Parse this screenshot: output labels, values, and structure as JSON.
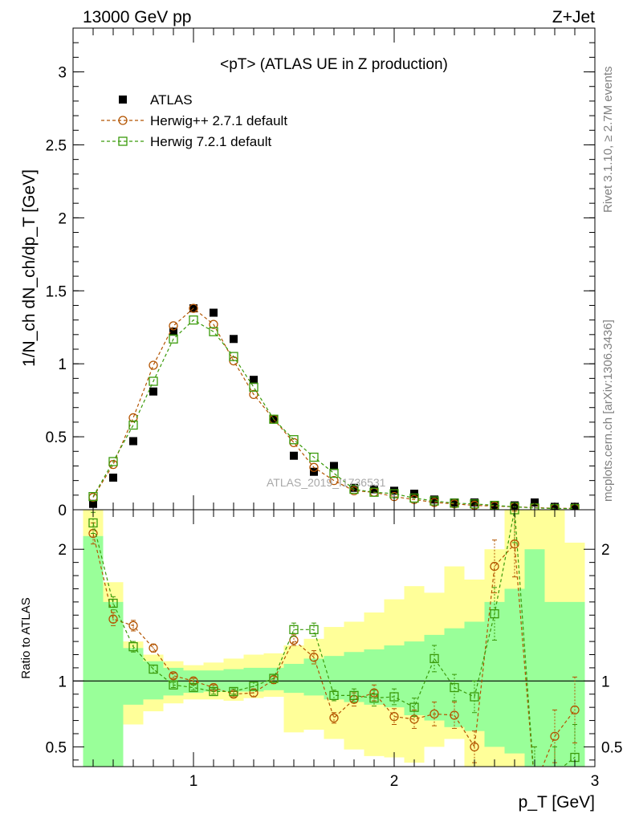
{
  "header": {
    "energy": "13000 GeV pp",
    "process": "Z+Jet"
  },
  "side_labels": {
    "rivet": "Rivet 3.1.10, ≥ 2.7M events",
    "mcplots": "mcplots.cern.ch [arXiv:1306.3436]"
  },
  "watermark": "ATLAS_2019_I1736531",
  "chart_data": [
    {
      "type": "scatter",
      "title": "<pT> (ATLAS UE in Z production)",
      "xlabel": "p_T [GeV]",
      "ylabel": "1/N_ch dN_ch/dp_T [GeV]",
      "xlim": [
        0.4,
        3.0
      ],
      "ylim": [
        0,
        3.3
      ],
      "x_ticks": [
        1,
        2,
        3
      ],
      "y_ticks": [
        0,
        0.5,
        1,
        1.5,
        2,
        2.5,
        3
      ],
      "y_tick_labels": [
        "0",
        "0.5",
        "1",
        "1.5",
        "2",
        "2.5",
        "3"
      ],
      "legend_position": "top-left",
      "x": [
        0.5,
        0.6,
        0.7,
        0.8,
        0.9,
        1.0,
        1.1,
        1.2,
        1.3,
        1.4,
        1.5,
        1.6,
        1.7,
        1.8,
        1.9,
        2.0,
        2.1,
        2.2,
        2.3,
        2.4,
        2.5,
        2.6,
        2.7,
        2.8,
        2.9
      ],
      "series": [
        {
          "name": "ATLAS",
          "marker": "filled-square",
          "color": "#000000",
          "values": [
            0.04,
            0.22,
            0.47,
            0.81,
            1.22,
            1.38,
            1.35,
            1.17,
            0.89,
            0.62,
            0.37,
            0.26,
            0.3,
            0.15,
            0.14,
            0.13,
            0.11,
            0.07,
            0.05,
            0.05,
            0.03,
            0.03,
            0.05,
            0.02,
            0.02
          ]
        },
        {
          "name": "Herwig++ 2.7.1 default",
          "marker": "open-circle",
          "color": "#b35400",
          "values": [
            0.085,
            0.31,
            0.63,
            0.99,
            1.26,
            1.38,
            1.27,
            1.02,
            0.79,
            0.62,
            0.46,
            0.29,
            0.2,
            0.13,
            0.12,
            0.09,
            0.07,
            0.05,
            0.04,
            0.03,
            0.025,
            0.02,
            0.015,
            0.01,
            0.01
          ]
        },
        {
          "name": "Herwig 7.2.1 default",
          "marker": "open-square",
          "color": "#3a9a0a",
          "values": [
            0.09,
            0.33,
            0.58,
            0.88,
            1.17,
            1.3,
            1.22,
            1.05,
            0.84,
            0.62,
            0.48,
            0.36,
            0.25,
            0.14,
            0.12,
            0.11,
            0.08,
            0.06,
            0.045,
            0.04,
            0.03,
            0.02,
            0.012,
            0.008,
            0.008
          ]
        }
      ]
    },
    {
      "type": "line",
      "ylabel": "Ratio to ATLAS",
      "xlim": [
        0.4,
        3.0
      ],
      "ylim": [
        0.35,
        2.3
      ],
      "y_ticks": [
        0.5,
        1,
        2
      ],
      "y_tick_labels": [
        "0.5",
        "1",
        "2"
      ],
      "reference_line": 1,
      "x": [
        0.5,
        0.6,
        0.7,
        0.8,
        0.9,
        1.0,
        1.1,
        1.2,
        1.3,
        1.4,
        1.5,
        1.6,
        1.7,
        1.8,
        1.9,
        2.0,
        2.1,
        2.2,
        2.3,
        2.4,
        2.5,
        2.6,
        2.7,
        2.8,
        2.9
      ],
      "bands": {
        "inner_color": "#99ff99",
        "outer_color": "#ffff99",
        "inner_lo": [
          0.35,
          0.35,
          0.82,
          0.86,
          0.89,
          0.91,
          0.92,
          0.92,
          0.92,
          0.93,
          0.91,
          0.89,
          0.86,
          0.84,
          0.82,
          0.8,
          0.74,
          0.7,
          0.65,
          0.62,
          0.5,
          0.45,
          0.35,
          0.35,
          0.35
        ],
        "inner_hi": [
          2.1,
          1.6,
          1.25,
          1.15,
          1.1,
          1.08,
          1.08,
          1.09,
          1.1,
          1.1,
          1.13,
          1.17,
          1.19,
          1.22,
          1.24,
          1.27,
          1.3,
          1.35,
          1.4,
          1.45,
          1.6,
          1.7,
          2.0,
          1.6,
          1.6
        ],
        "outer_lo": [
          0.35,
          0.58,
          0.67,
          0.77,
          0.83,
          0.86,
          0.86,
          0.85,
          0.87,
          0.88,
          0.61,
          0.63,
          0.56,
          0.48,
          0.43,
          0.42,
          0.38,
          0.5,
          0.56,
          0.35,
          0.35,
          0.35,
          0.35,
          0.35,
          0.42
        ],
        "outer_hi": [
          2.3,
          1.75,
          1.3,
          1.2,
          1.15,
          1.12,
          1.14,
          1.17,
          1.2,
          1.21,
          1.27,
          1.32,
          1.41,
          1.45,
          1.52,
          1.62,
          1.72,
          1.67,
          1.87,
          1.77,
          2.0,
          2.3,
          2.3,
          2.3,
          2.05
        ]
      },
      "series": [
        {
          "name": "Herwig++ 2.7.1 default",
          "marker": "open-circle",
          "color": "#b35400",
          "values": [
            2.12,
            1.47,
            1.42,
            1.25,
            1.04,
            1.0,
            0.95,
            0.9,
            0.91,
            1.01,
            1.31,
            1.18,
            0.72,
            0.86,
            0.91,
            0.73,
            0.71,
            0.75,
            0.74,
            0.5,
            1.87,
            2.04,
            0.2,
            0.58,
            0.78
          ],
          "err": [
            0.08,
            0.05,
            0.04,
            0.03,
            0.02,
            0.02,
            0.02,
            0.02,
            0.03,
            0.03,
            0.04,
            0.05,
            0.04,
            0.05,
            0.06,
            0.06,
            0.07,
            0.09,
            0.1,
            0.12,
            0.2,
            0.25,
            0.3,
            0.2,
            0.25
          ]
        },
        {
          "name": "Herwig 7.2.1 default",
          "marker": "open-square",
          "color": "#3a9a0a",
          "values": [
            2.2,
            1.59,
            1.26,
            1.09,
            0.97,
            0.95,
            0.92,
            0.92,
            0.96,
            1.02,
            1.39,
            1.39,
            0.89,
            0.89,
            0.87,
            0.88,
            0.8,
            1.17,
            0.95,
            0.88,
            1.51,
            2.3,
            0.2,
            0.3,
            0.42
          ],
          "err": [
            0.08,
            0.05,
            0.04,
            0.03,
            0.02,
            0.02,
            0.02,
            0.02,
            0.03,
            0.03,
            0.05,
            0.05,
            0.04,
            0.05,
            0.06,
            0.06,
            0.07,
            0.1,
            0.1,
            0.12,
            0.2,
            0.25,
            0.3,
            0.2,
            0.25
          ]
        }
      ]
    }
  ]
}
